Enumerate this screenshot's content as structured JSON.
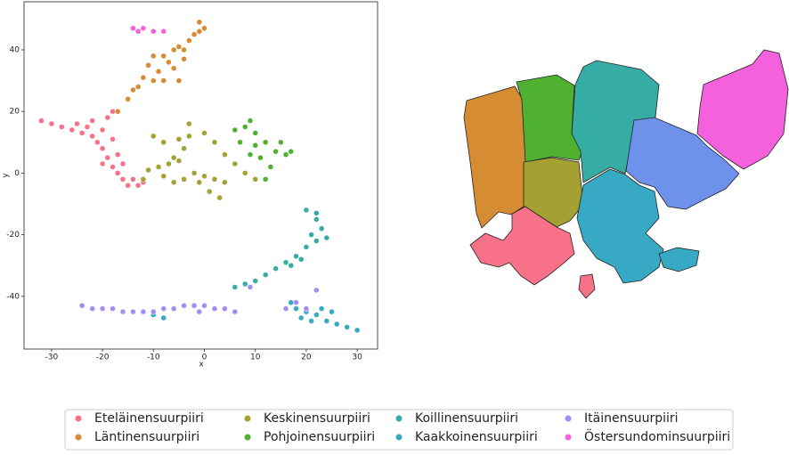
{
  "chart_data": {
    "type": "scatter",
    "xlabel": "x",
    "ylabel": "y",
    "xlim": [
      -35.4,
      34
    ],
    "ylim": [
      -57.1,
      55.6
    ],
    "xticks": [
      -30,
      -20,
      -10,
      0,
      10,
      20,
      30
    ],
    "yticks": [
      -40,
      -20,
      0,
      20,
      40
    ],
    "series": [
      {
        "name": "Eteläinensuurpiiri",
        "color": "#f77189",
        "x": [
          -32,
          -30,
          -28,
          -26,
          -24,
          -22,
          -20,
          -19,
          -18,
          -20,
          -19,
          -18,
          -17,
          -16,
          -15,
          -13,
          -21,
          -23,
          -17,
          -14,
          -12,
          -25,
          -22,
          -18,
          -20,
          -16
        ],
        "values": [
          17,
          16,
          15,
          14,
          13,
          12,
          14,
          18,
          20,
          8,
          5,
          2,
          0,
          -2,
          -4,
          -4,
          10,
          15,
          6,
          -2,
          -3,
          16,
          17,
          11,
          3,
          3
        ]
      },
      {
        "name": "Läntinensuurpiiri",
        "color": "#d58c32",
        "x": [
          -17,
          -15,
          -13,
          -12,
          -10,
          -8,
          -11,
          -10,
          -8,
          -7,
          -6,
          -5,
          -4,
          -3,
          -2,
          -1,
          0,
          -9,
          -6,
          -4,
          -14,
          -5,
          -1
        ],
        "values": [
          20,
          24,
          28,
          31,
          30,
          30,
          35,
          38,
          38,
          36,
          40,
          41,
          40,
          43,
          45,
          46,
          47,
          33,
          34,
          37,
          27,
          30,
          49
        ]
      },
      {
        "name": "Keskinensuurpiiri",
        "color": "#a4a031",
        "x": [
          -11,
          -9,
          -7,
          -5,
          -4,
          -3,
          -3,
          -5,
          -6,
          -8,
          -6,
          -4,
          -2,
          0,
          2,
          4,
          3,
          1,
          -1,
          -8,
          -10,
          0,
          2,
          4,
          6,
          8,
          10,
          -12
        ],
        "values": [
          1,
          2,
          3,
          4,
          8,
          12,
          16,
          11,
          5,
          -1,
          -3,
          -2,
          0,
          -1,
          -2,
          -3,
          -8,
          -6,
          -3,
          10,
          12,
          13,
          10,
          6,
          3,
          0,
          -2,
          -2
        ]
      },
      {
        "name": "Pohjoinensuurpiiri",
        "color": "#50b131",
        "x": [
          6,
          8,
          9,
          10,
          12,
          14,
          16,
          17,
          11,
          13,
          12,
          15,
          10,
          7,
          9
        ],
        "values": [
          14,
          15,
          17,
          13,
          10,
          7,
          6,
          7,
          5,
          2,
          -2,
          10,
          9,
          10,
          6
        ]
      },
      {
        "name": "Koillinensuurpiiri",
        "color": "#36ada4",
        "x": [
          20,
          22,
          23,
          22,
          20,
          18,
          16,
          14,
          12,
          10,
          8,
          6,
          24,
          21,
          19,
          17,
          22
        ],
        "values": [
          -12,
          -15,
          -18,
          -22,
          -24,
          -27,
          -29,
          -31,
          -33,
          -35,
          -36,
          -37,
          -21,
          -20,
          -28,
          -30,
          -13
        ]
      },
      {
        "name": "Kaakkoinensuurpiiri",
        "color": "#38a9c5",
        "x": [
          17,
          18,
          20,
          22,
          24,
          26,
          28,
          30,
          19,
          23,
          21,
          25,
          -10,
          -8,
          -14
        ],
        "values": [
          -42,
          -44,
          -45,
          -46,
          -48,
          -49,
          -50,
          -51,
          -47,
          -44,
          -48,
          -45,
          -46,
          -47,
          -45
        ]
      },
      {
        "name": "Itäinensuurpiiri",
        "color": "#a48cf4",
        "x": [
          -24,
          -22,
          -20,
          -18,
          -16,
          -14,
          -12,
          -10,
          -8,
          -6,
          -4,
          -2,
          0,
          2,
          4,
          6,
          -1,
          16,
          18,
          20,
          9,
          22
        ],
        "values": [
          -43,
          -44,
          -44,
          -44,
          -45,
          -45,
          -45,
          -45,
          -44,
          -44,
          -43,
          -43,
          -43,
          -44,
          -44,
          -45,
          -45,
          -44,
          -42,
          -44,
          -37,
          -38
        ]
      },
      {
        "name": "Östersundominsuurpiiri",
        "color": "#f561dd",
        "x": [
          -14,
          -12,
          -10,
          -8,
          -13
        ],
        "values": [
          47,
          47,
          46,
          46,
          46
        ]
      }
    ]
  }
}
